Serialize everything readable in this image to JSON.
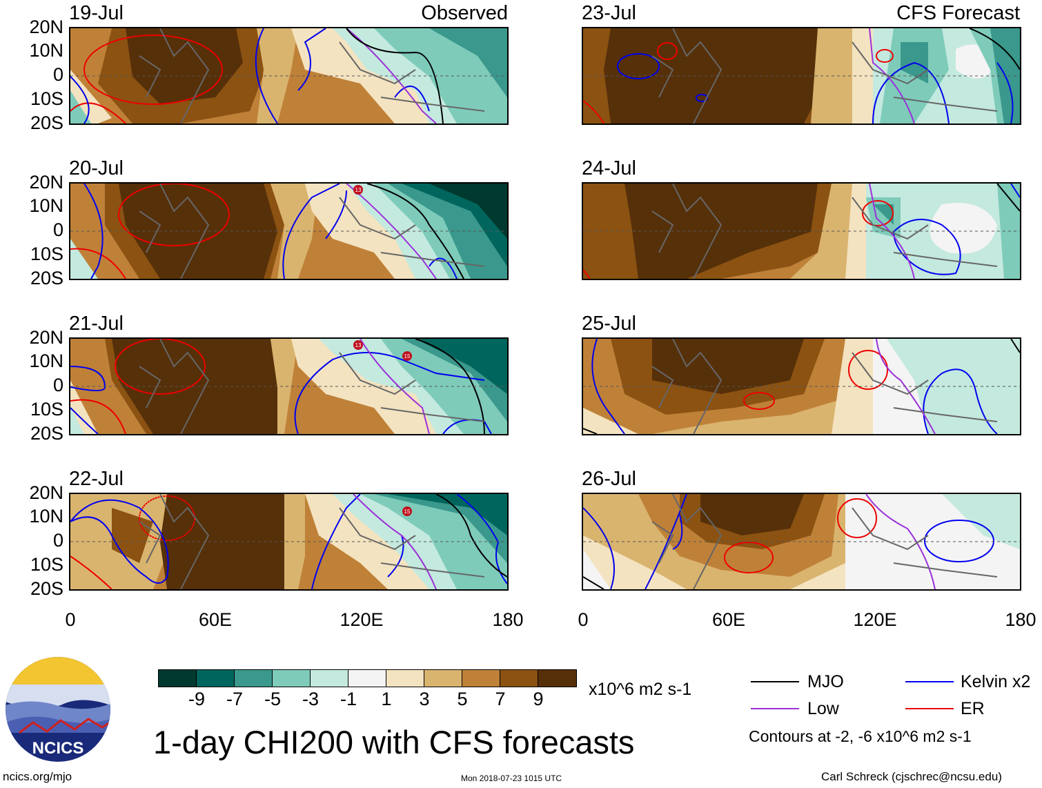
{
  "header": {
    "left_column_label": "Observed",
    "right_column_label": "CFS Forecast"
  },
  "panels": {
    "left": [
      {
        "date": "19-Jul",
        "cyclones": []
      },
      {
        "date": "20-Jul",
        "cyclones": [
          "13"
        ]
      },
      {
        "date": "21-Jul",
        "cyclones": [
          "13",
          "15"
        ]
      },
      {
        "date": "22-Jul",
        "cyclones": [
          "15"
        ]
      }
    ],
    "right": [
      {
        "date": "23-Jul",
        "cyclones": []
      },
      {
        "date": "24-Jul",
        "cyclones": []
      },
      {
        "date": "25-Jul",
        "cyclones": []
      },
      {
        "date": "26-Jul",
        "cyclones": []
      }
    ]
  },
  "axes": {
    "y_ticks": [
      "20N",
      "10N",
      "0",
      "10S",
      "20S"
    ],
    "x_ticks": [
      "0",
      "60E",
      "120E",
      "180"
    ]
  },
  "colorbar": {
    "labels": [
      "-9",
      "-7",
      "-5",
      "-3",
      "-1",
      "1",
      "3",
      "5",
      "7",
      "9"
    ],
    "colors": [
      "#00392f",
      "#00665d",
      "#3a988c",
      "#7ecbba",
      "#c4e9df",
      "#f4f4f4",
      "#f4e3c0",
      "#d9b46f",
      "#bf8138",
      "#8b5212",
      "#563009"
    ],
    "units": "x10^6 m2 s-1"
  },
  "title": "1-day CHI200 with CFS forecasts",
  "legend": {
    "items": [
      {
        "label": "MJO",
        "color": "#000000"
      },
      {
        "label": "Low",
        "color": "#9b30d9"
      },
      {
        "label": "Kelvin x2",
        "color": "#0000ee"
      },
      {
        "label": "ER",
        "color": "#ee0000"
      }
    ],
    "contours_note": "Contours at -2, -6 x10^6 m2 s-1"
  },
  "logo": {
    "text": "NCICS"
  },
  "footer": {
    "website": "ncics.org/mjo",
    "timestamp": "Mon 2018-07-23 1015 UTC",
    "author": "Carl Schreck (cjschrec@ncsu.edu)"
  }
}
